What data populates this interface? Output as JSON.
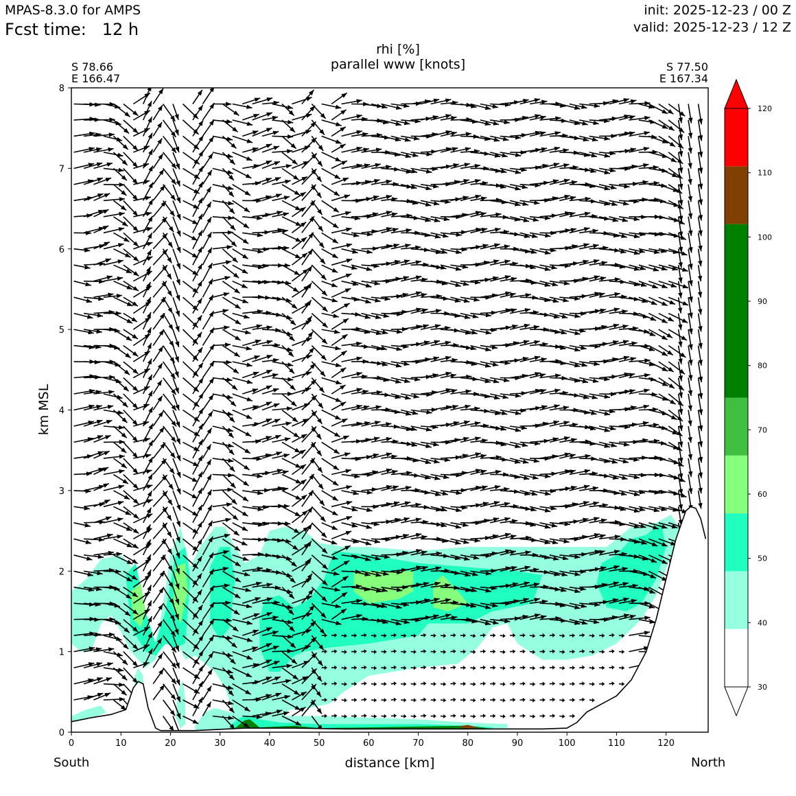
{
  "header": {
    "model": "MPAS-8.3.0 for AMPS",
    "fcst_time": "Fcst time:   12 h",
    "init": "init: 2025-12-23 / 00 Z",
    "valid": "valid: 2025-12-23 / 12 Z"
  },
  "cross_section": {
    "start_lat": "S 78.66",
    "start_lon": "E 166.47",
    "end_lat": "S 77.50",
    "end_lon": "E 167.34",
    "left_end": "South",
    "right_end": "North"
  },
  "chart_data": {
    "type": "heatmap",
    "title": "rhi [%]",
    "subtitle": "parallel www [knots]",
    "xlabel": "distance [km]",
    "ylabel": "km MSL",
    "xlim": [
      0,
      128.5
    ],
    "ylim": [
      0,
      8
    ],
    "x_ticks": [
      0,
      10,
      20,
      30,
      40,
      50,
      60,
      70,
      80,
      90,
      100,
      110,
      120
    ],
    "y_ticks": [
      0,
      1,
      2,
      3,
      4,
      5,
      6,
      7,
      8
    ],
    "colorbar": {
      "levels": [
        30,
        40,
        50,
        60,
        70,
        80,
        90,
        100,
        110,
        120
      ],
      "ticks": [
        30,
        40,
        50,
        60,
        70,
        80,
        90,
        100,
        110,
        120
      ],
      "bands": [
        {
          "from": 30,
          "to": 39,
          "color": "#ffffff"
        },
        {
          "from": 39,
          "to": 48,
          "color": "#96ffdf"
        },
        {
          "from": 48,
          "to": 57,
          "color": "#20ffc0"
        },
        {
          "from": 57,
          "to": 66,
          "color": "#86ff7c"
        },
        {
          "from": 66,
          "to": 75,
          "color": "#40c040"
        },
        {
          "from": 75,
          "to": 102,
          "color": "#008000"
        },
        {
          "from": 102,
          "to": 111,
          "color": "#804000"
        },
        {
          "from": 111,
          "to": 120,
          "color": "#ff0000"
        }
      ],
      "extend": "both"
    },
    "terrain": [
      [
        0,
        0.13
      ],
      [
        4,
        0.18
      ],
      [
        8,
        0.22
      ],
      [
        11,
        0.28
      ],
      [
        12.5,
        0.55
      ],
      [
        13.5,
        0.63
      ],
      [
        14.5,
        0.6
      ],
      [
        15.5,
        0.3
      ],
      [
        17,
        0.05
      ],
      [
        18,
        0.02
      ],
      [
        25,
        0.02
      ],
      [
        35,
        0.05
      ],
      [
        45,
        0.05
      ],
      [
        55,
        0.04
      ],
      [
        65,
        0.04
      ],
      [
        75,
        0.04
      ],
      [
        85,
        0.04
      ],
      [
        95,
        0.04
      ],
      [
        100,
        0.05
      ],
      [
        102,
        0.12
      ],
      [
        104,
        0.25
      ],
      [
        107,
        0.35
      ],
      [
        110,
        0.45
      ],
      [
        113,
        0.65
      ],
      [
        116,
        1.0
      ],
      [
        118,
        1.4
      ],
      [
        120,
        1.9
      ],
      [
        122,
        2.4
      ],
      [
        124,
        2.75
      ],
      [
        125,
        2.8
      ],
      [
        126,
        2.78
      ],
      [
        127,
        2.65
      ],
      [
        128,
        2.4
      ]
    ],
    "rh_regions": [
      {
        "level": 40,
        "points": [
          [
            0,
            1.75
          ],
          [
            3,
            1.9
          ],
          [
            6,
            2.15
          ],
          [
            10,
            2.2
          ],
          [
            13,
            2.0
          ],
          [
            15,
            1.2
          ],
          [
            16.5,
            1.0
          ],
          [
            18,
            1.4
          ],
          [
            20,
            2.2
          ],
          [
            22,
            2.55
          ],
          [
            24,
            2.05
          ],
          [
            26,
            2.3
          ],
          [
            29,
            2.55
          ],
          [
            31,
            2.55
          ],
          [
            33,
            2.3
          ],
          [
            35,
            2.1
          ],
          [
            38,
            2.2
          ],
          [
            40,
            2.5
          ],
          [
            43,
            2.55
          ],
          [
            47,
            2.5
          ],
          [
            50,
            2.35
          ],
          [
            55,
            2.3
          ],
          [
            60,
            2.3
          ],
          [
            70,
            2.25
          ],
          [
            80,
            2.3
          ],
          [
            90,
            2.3
          ],
          [
            100,
            2.3
          ],
          [
            108,
            2.3
          ],
          [
            113,
            2.55
          ],
          [
            118,
            2.6
          ],
          [
            121,
            2.7
          ],
          [
            123,
            2.5
          ],
          [
            121,
            2.2
          ],
          [
            118,
            1.7
          ],
          [
            115,
            1.4
          ],
          [
            110,
            1.1
          ],
          [
            105,
            0.95
          ],
          [
            100,
            0.9
          ],
          [
            95,
            0.9
          ],
          [
            90,
            1.1
          ],
          [
            88,
            1.35
          ],
          [
            85,
            1.3
          ],
          [
            82,
            1.05
          ],
          [
            78,
            0.85
          ],
          [
            70,
            0.8
          ],
          [
            60,
            0.7
          ],
          [
            55,
            0.5
          ],
          [
            52,
            0.35
          ],
          [
            48,
            0.3
          ],
          [
            44,
            0.28
          ],
          [
            42,
            0.12
          ],
          [
            38,
            0.08
          ],
          [
            36,
            0.05
          ],
          [
            33,
            0.2
          ],
          [
            31,
            0.55
          ],
          [
            29,
            0.75
          ],
          [
            27,
            0.85
          ],
          [
            25,
            0.95
          ],
          [
            23,
            0.9
          ],
          [
            21,
            1.15
          ],
          [
            19,
            1.2
          ],
          [
            17,
            0.9
          ],
          [
            15,
            0.8
          ],
          [
            12,
            1.0
          ],
          [
            10,
            1.25
          ],
          [
            8,
            1.45
          ],
          [
            6,
            1.35
          ],
          [
            4,
            1.0
          ],
          [
            2,
            1.0
          ],
          [
            0,
            1.1
          ]
        ]
      },
      {
        "level": 50,
        "points": [
          [
            11,
            1.95
          ],
          [
            13,
            2.1
          ],
          [
            15,
            1.5
          ],
          [
            17,
            1.1
          ],
          [
            19,
            1.5
          ],
          [
            21,
            2.2
          ],
          [
            23,
            2.3
          ],
          [
            24,
            1.9
          ],
          [
            23,
            1.1
          ],
          [
            21,
            1.05
          ],
          [
            19,
            1.1
          ],
          [
            17,
            0.95
          ],
          [
            15,
            1.0
          ],
          [
            12,
            1.3
          ]
        ]
      },
      {
        "level": 50,
        "points": [
          [
            28,
            2.05
          ],
          [
            30,
            2.3
          ],
          [
            32,
            2.3
          ],
          [
            33,
            1.9
          ],
          [
            32,
            1.3
          ],
          [
            30,
            1.15
          ],
          [
            28,
            1.35
          ]
        ]
      },
      {
        "level": 50,
        "points": [
          [
            39,
            1.65
          ],
          [
            42,
            1.7
          ],
          [
            45,
            1.55
          ],
          [
            48,
            1.65
          ],
          [
            51,
            1.9
          ],
          [
            53,
            2.25
          ],
          [
            60,
            2.2
          ],
          [
            70,
            2.1
          ],
          [
            80,
            2.05
          ],
          [
            90,
            2.0
          ],
          [
            95,
            1.95
          ],
          [
            93,
            1.6
          ],
          [
            85,
            1.5
          ],
          [
            80,
            1.35
          ],
          [
            72,
            1.35
          ],
          [
            70,
            1.2
          ],
          [
            60,
            1.1
          ],
          [
            52,
            1.05
          ],
          [
            47,
            1.0
          ],
          [
            45,
            0.95
          ],
          [
            42,
            0.75
          ],
          [
            40,
            0.75
          ],
          [
            38,
            1.05
          ],
          [
            38,
            1.4
          ]
        ]
      },
      {
        "level": 50,
        "points": [
          [
            107,
            2.1
          ],
          [
            110,
            2.2
          ],
          [
            113,
            2.4
          ],
          [
            116,
            2.45
          ],
          [
            119,
            2.6
          ],
          [
            120,
            2.3
          ],
          [
            118,
            1.9
          ],
          [
            115,
            1.6
          ],
          [
            112,
            1.5
          ],
          [
            108,
            1.55
          ],
          [
            106,
            1.85
          ]
        ]
      },
      {
        "level": 60,
        "points": [
          [
            12,
            1.75
          ],
          [
            14,
            1.85
          ],
          [
            15,
            1.5
          ],
          [
            14,
            1.3
          ],
          [
            12.5,
            1.4
          ]
        ]
      },
      {
        "level": 60,
        "points": [
          [
            21,
            2.05
          ],
          [
            23,
            2.1
          ],
          [
            23.5,
            1.75
          ],
          [
            22,
            1.35
          ],
          [
            20.5,
            1.55
          ]
        ]
      },
      {
        "level": 60,
        "points": [
          [
            57,
            2.0
          ],
          [
            62,
            2.0
          ],
          [
            69,
            2.0
          ],
          [
            69,
            1.75
          ],
          [
            66,
            1.65
          ],
          [
            60,
            1.6
          ],
          [
            57,
            1.75
          ]
        ]
      },
      {
        "level": 60,
        "points": [
          [
            73,
            1.85
          ],
          [
            75,
            1.95
          ],
          [
            78,
            1.75
          ],
          [
            80,
            1.6
          ],
          [
            76,
            1.5
          ],
          [
            73,
            1.55
          ]
        ]
      },
      {
        "level": 40,
        "points": [
          [
            0,
            0.2
          ],
          [
            3,
            0.28
          ],
          [
            6,
            0.33
          ],
          [
            7,
            0.24
          ],
          [
            3,
            0.15
          ],
          [
            0,
            0.13
          ]
        ]
      },
      {
        "level": 40,
        "points": [
          [
            21.5,
            0.5
          ],
          [
            22.5,
            0.65
          ],
          [
            23,
            0.4
          ],
          [
            23,
            0.1
          ],
          [
            22,
            0.05
          ],
          [
            21,
            0.2
          ]
        ]
      },
      {
        "level": 40,
        "points": [
          [
            12.5,
            0.65
          ],
          [
            13.5,
            0.8
          ],
          [
            14.5,
            0.7
          ],
          [
            14.5,
            0.6
          ],
          [
            13,
            0.55
          ]
        ]
      },
      {
        "level": 40,
        "points": [
          [
            25,
            0.08
          ],
          [
            27,
            0.25
          ],
          [
            29,
            0.3
          ],
          [
            32,
            0.25
          ],
          [
            40,
            0.2
          ],
          [
            50,
            0.2
          ],
          [
            60,
            0.18
          ],
          [
            70,
            0.16
          ],
          [
            80,
            0.12
          ],
          [
            88,
            0.1
          ],
          [
            88,
            0.05
          ],
          [
            25,
            0.02
          ]
        ]
      },
      {
        "level": 50,
        "points": [
          [
            32,
            0.08
          ],
          [
            34,
            0.18
          ],
          [
            36,
            0.2
          ],
          [
            38,
            0.16
          ],
          [
            42,
            0.12
          ],
          [
            50,
            0.1
          ],
          [
            60,
            0.1
          ],
          [
            70,
            0.1
          ],
          [
            80,
            0.08
          ],
          [
            85,
            0.06
          ],
          [
            85,
            0.03
          ],
          [
            32,
            0.03
          ]
        ]
      },
      {
        "level": 80,
        "points": [
          [
            33,
            0.05
          ],
          [
            35,
            0.15
          ],
          [
            36,
            0.16
          ],
          [
            38,
            0.06
          ],
          [
            45,
            0.08
          ],
          [
            50,
            0.05
          ],
          [
            60,
            0.06
          ],
          [
            70,
            0.07
          ],
          [
            80,
            0.08
          ],
          [
            84,
            0.05
          ],
          [
            84,
            0.03
          ],
          [
            33,
            0.03
          ]
        ]
      },
      {
        "level": 110,
        "points": [
          [
            78,
            0.07
          ],
          [
            80,
            0.09
          ],
          [
            82,
            0.06
          ],
          [
            80,
            0.04
          ]
        ]
      }
    ]
  }
}
